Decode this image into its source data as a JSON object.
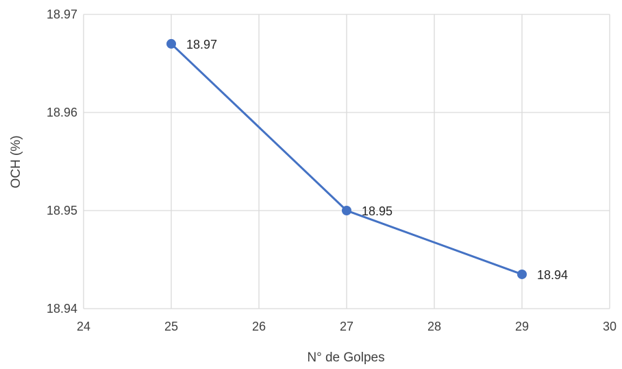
{
  "chart_data": {
    "type": "scatter",
    "xlabel": "N° de Golpes",
    "ylabel": "OCH (%)",
    "xlim": [
      24,
      30
    ],
    "ylim": [
      18.94,
      18.97
    ],
    "xticks": [
      "24",
      "25",
      "26",
      "27",
      "28",
      "29",
      "30"
    ],
    "yticks": [
      "18.94",
      "18.95",
      "18.96",
      "18.97"
    ],
    "grid": true,
    "line_color": "#4472c4",
    "series": [
      {
        "x": [
          25,
          27,
          29
        ],
        "y": [
          18.967,
          18.95,
          18.9435
        ],
        "labels": [
          "18.97",
          "18.95",
          "18.94"
        ]
      }
    ]
  }
}
